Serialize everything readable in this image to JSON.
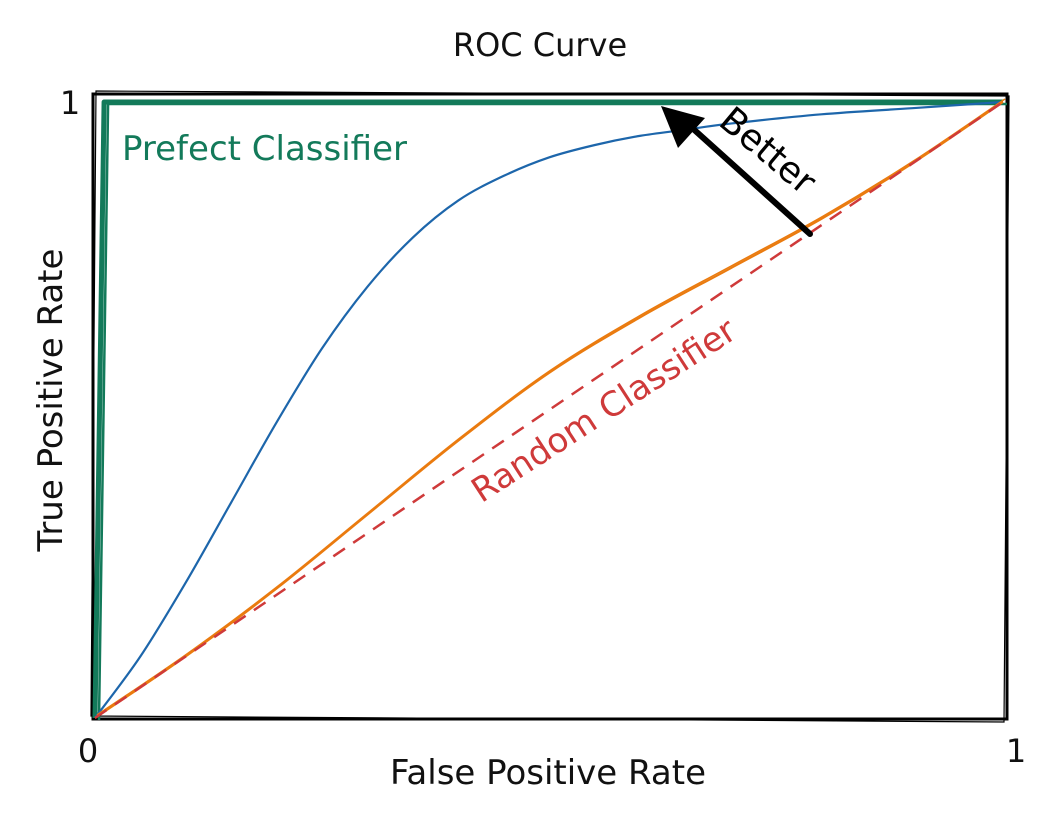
{
  "chart_data": {
    "type": "line",
    "title": "ROC Curve",
    "xlabel": "False Positive Rate",
    "ylabel": "True Positive Rate",
    "xlim": [
      0,
      1
    ],
    "ylim": [
      0,
      1
    ],
    "grid": false,
    "ticks": {
      "x": [
        "0",
        "1"
      ],
      "y": [
        "1"
      ]
    },
    "series": [
      {
        "name": "Prefect Classifier",
        "color": "#137a5a",
        "style": "solid-thick",
        "x": [
          0,
          0.01,
          1
        ],
        "y": [
          0,
          1,
          1
        ]
      },
      {
        "color": "#1d66ab",
        "style": "solid",
        "x": [
          0,
          0.05,
          0.1,
          0.15,
          0.2,
          0.25,
          0.3,
          0.35,
          0.4,
          0.45,
          0.5,
          0.55,
          0.6,
          0.65,
          0.7,
          0.8,
          0.9,
          1.0
        ],
        "y": [
          0,
          0.1,
          0.22,
          0.35,
          0.48,
          0.6,
          0.7,
          0.78,
          0.84,
          0.88,
          0.91,
          0.93,
          0.945,
          0.955,
          0.965,
          0.98,
          0.99,
          1.0
        ]
      },
      {
        "color": "#ea7b0f",
        "style": "double",
        "x": [
          0,
          0.1,
          0.2,
          0.3,
          0.4,
          0.5,
          0.6,
          0.7,
          0.8,
          0.9,
          1.0
        ],
        "y": [
          0,
          0.1,
          0.21,
          0.33,
          0.45,
          0.56,
          0.65,
          0.73,
          0.81,
          0.9,
          1.0
        ]
      },
      {
        "name": "Random Classifier",
        "color": "#cf3a3a",
        "style": "dashed",
        "x": [
          0,
          1
        ],
        "y": [
          0,
          1
        ]
      }
    ],
    "annotations": [
      {
        "text": "Better",
        "color": "#000000"
      }
    ]
  }
}
